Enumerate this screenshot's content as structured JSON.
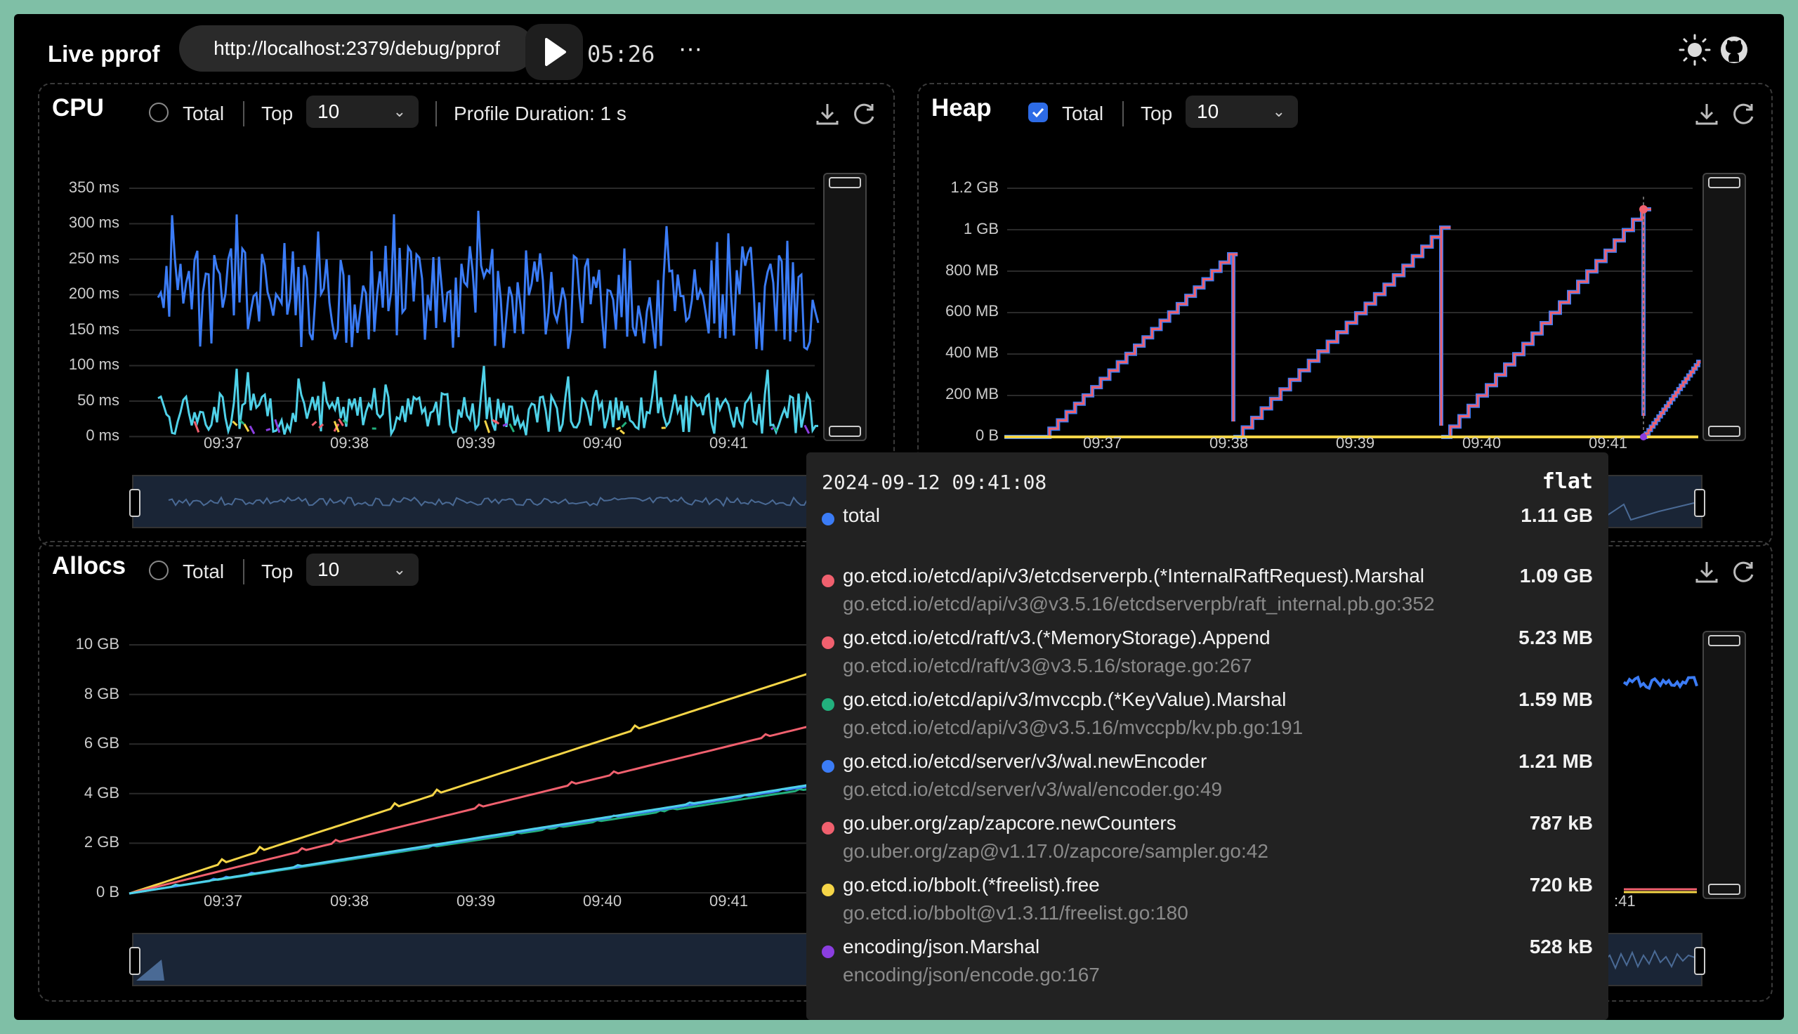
{
  "topbar": {
    "title": "Live pprof",
    "url": "http://localhost:2379/debug/pprof",
    "timer": "05:26",
    "more": "···"
  },
  "cpu": {
    "title": "CPU",
    "total_label": "Total",
    "total_checked": false,
    "top_label": "Top",
    "top_value": "10",
    "duration": "Profile Duration: 1 s",
    "y_ticks": [
      "350 ms",
      "300 ms",
      "250 ms",
      "200 ms",
      "150 ms",
      "100 ms",
      "50 ms",
      "0 ms"
    ],
    "x_ticks": [
      "09:37",
      "09:38",
      "09:39",
      "09:40",
      "09:41"
    ]
  },
  "heap": {
    "title": "Heap",
    "total_label": "Total",
    "total_checked": true,
    "top_label": "Top",
    "top_value": "10",
    "y_ticks": [
      "1.2 GB",
      "1 GB",
      "800 MB",
      "600 MB",
      "400 MB",
      "200 MB",
      "0 B"
    ],
    "x_ticks": [
      "09:37",
      "09:38",
      "09:39",
      "09:40",
      "09:41"
    ]
  },
  "allocs": {
    "title": "Allocs",
    "total_label": "Total",
    "total_checked": false,
    "top_label": "Top",
    "top_value": "10",
    "y_ticks": [
      "10 GB",
      "8 GB",
      "6 GB",
      "4 GB",
      "2 GB",
      "0 B"
    ],
    "x_ticks": [
      "09:37",
      "09:38",
      "09:39",
      "09:40",
      "09:41"
    ],
    "x_ticks_right": [
      ":41"
    ]
  },
  "tooltip": {
    "timestamp": "2024-09-12 09:41:08",
    "header": "flat",
    "total": {
      "label": "total",
      "value": "1.11 GB",
      "color": "#3b7cf6"
    },
    "items": [
      {
        "fn": "go.etcd.io/etcd/api/v3/etcdserverpb.(*InternalRaftRequest).Marshal",
        "src": "go.etcd.io/etcd/api/v3@v3.5.16/etcdserverpb/raft_internal.pb.go:352",
        "value": "1.09 GB",
        "color": "#f0606e"
      },
      {
        "fn": "go.etcd.io/etcd/raft/v3.(*MemoryStorage).Append",
        "src": "go.etcd.io/etcd/raft/v3@v3.5.16/storage.go:267",
        "value": "5.23 MB",
        "color": "#f0606e"
      },
      {
        "fn": "go.etcd.io/etcd/api/v3/mvccpb.(*KeyValue).Marshal",
        "src": "go.etcd.io/etcd/api/v3@v3.5.16/mvccpb/kv.pb.go:191",
        "value": "1.59 MB",
        "color": "#22b07d"
      },
      {
        "fn": "go.etcd.io/etcd/server/v3/wal.newEncoder",
        "src": "go.etcd.io/etcd/server/v3/wal/encoder.go:49",
        "value": "1.21 MB",
        "color": "#3b7cf6"
      },
      {
        "fn": "go.uber.org/zap/zapcore.newCounters",
        "src": "go.uber.org/zap@v1.17.0/zapcore/sampler.go:42",
        "value": "787 kB",
        "color": "#f0606e"
      },
      {
        "fn": "go.etcd.io/bbolt.(*freelist).free",
        "src": "go.etcd.io/bbolt@v1.3.11/freelist.go:180",
        "value": "720 kB",
        "color": "#f5d547"
      },
      {
        "fn": "encoding/json.Marshal",
        "src": "encoding/json/encode.go:167",
        "value": "528 kB",
        "color": "#8b3ee0"
      }
    ]
  },
  "colors": {
    "blue": "#3b7cf6",
    "cyan": "#4fd1e8",
    "red": "#f0606e",
    "yellow": "#f5d547",
    "purple": "#8b3ee0",
    "green": "#22b07d"
  }
}
